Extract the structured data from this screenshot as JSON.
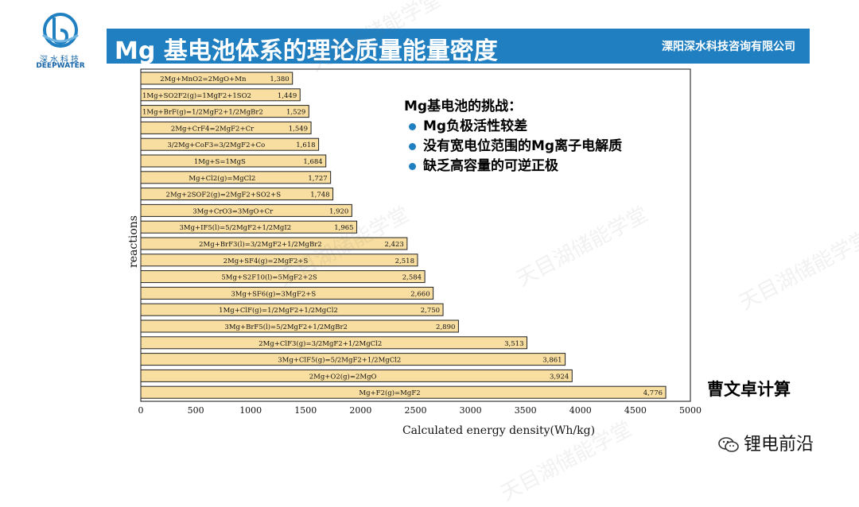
{
  "logo": {
    "cn": "深水科技",
    "en": "DEEPWATER"
  },
  "header": {
    "title": "Mg 基电池体系的理论质量能量密度",
    "company": "溧阳深水科技咨询有限公司"
  },
  "challenges": {
    "heading": "Mg基电池的挑战：",
    "items": [
      "Mg负极活性较差",
      "没有宽电位范围的Mg离子电解质",
      "缺乏高容量的可逆正极"
    ]
  },
  "note": "曹文卓计算",
  "wechat": {
    "label": "锂电前沿",
    "icon": "wechat-icon"
  },
  "watermarks": [
    "天目湖储能学堂",
    "天目湖储能学堂",
    "天目湖储能学堂",
    "天目湖储能学堂",
    "天目湖储能学堂"
  ],
  "colors": {
    "title_bar": "#1f7fc1",
    "bar_fill": "#f8dea0",
    "bar_stroke": "#222222",
    "bullet": "#1f7fc1"
  },
  "chart_data": {
    "type": "bar",
    "orientation": "horizontal",
    "xlabel": "Calculated energy density(Wh/kg)",
    "ylabel": "reactions",
    "xlim": [
      0,
      5000
    ],
    "xticks": [
      0,
      500,
      1000,
      1500,
      2000,
      2500,
      3000,
      3500,
      4000,
      4500,
      5000
    ],
    "grid": false,
    "categories": [
      "2Mg+MnO2=2MgO+Mn",
      "1Mg+SO2F2(g)=1MgF2+1SO2",
      "1Mg+BrF(g)=1/2MgF2+1/2MgBr2",
      "2Mg+CrF4=2MgF2+Cr",
      "3/2Mg+CoF3=3/2MgF2+Co",
      "1Mg+S=1MgS",
      "Mg+Cl2(g)=MgCl2",
      "2Mg+2SOF2(g)=2MgF2+SO2+S",
      "3Mg+CrO3=3MgO+Cr",
      "3Mg+IF5(l)=5/2MgF2+1/2MgI2",
      "2Mg+BrF3(l)=3/2MgF2+1/2MgBr2",
      "2Mg+SF4(g)=2MgF2+S",
      "5Mg+S2F10(l)=5MgF2+2S",
      "3Mg+SF6(g)=3MgF2+S",
      "1Mg+ClF(g)=1/2MgF2+1/2MgCl2",
      "3Mg+BrF5(l)=5/2MgF2+1/2MgBr2",
      "2Mg+ClF3(g)=3/2MgF2+1/2MgCl2",
      "3Mg+ClF5(g)=5/2MgF2+1/2MgCl2",
      "2Mg+O2(g)=2MgO",
      "Mg+F2(g)=MgF2"
    ],
    "values": [
      1380,
      1449,
      1529,
      1549,
      1618,
      1684,
      1727,
      1748,
      1920,
      1965,
      2423,
      2518,
      2584,
      2660,
      2750,
      2890,
      3513,
      3861,
      3924,
      4776
    ],
    "value_labels": [
      "1,380",
      "1,449",
      "1,529",
      "1,549",
      "1,618",
      "1,684",
      "1,727",
      "1,748",
      "1,920",
      "1,965",
      "2,423",
      "2,518",
      "2,584",
      "2,660",
      "2,750",
      "2,890",
      "3,513",
      "3,861",
      "3,924",
      "4,776"
    ]
  }
}
